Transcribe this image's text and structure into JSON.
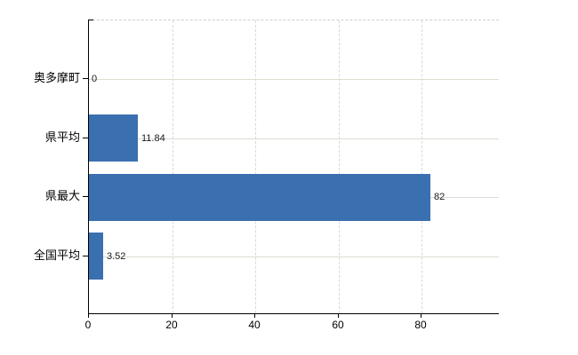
{
  "chart_data": {
    "type": "bar",
    "orientation": "horizontal",
    "title": "",
    "xlabel": "",
    "ylabel": "",
    "categories": [
      "奥多摩町",
      "県平均",
      "県最大",
      "全国平均"
    ],
    "values": [
      0,
      11.84,
      82,
      3.52
    ],
    "value_labels": [
      "0",
      "11.84",
      "82",
      "3.52"
    ],
    "x_ticks": [
      0,
      20,
      40,
      60,
      80
    ],
    "x_tick_labels": [
      "0",
      "20",
      "40",
      "60",
      "80"
    ],
    "xlim": [
      0,
      98.5
    ],
    "grid": true,
    "legend": "none",
    "colors": {
      "bar": "#3a6fb0",
      "horizontal_gridline": "#d8dfd2",
      "vertical_gridline": "#d9d9d9",
      "axis": "#000000",
      "label_text": "#000000",
      "value_text": "#1a1a1a",
      "background": "#ffffff"
    }
  }
}
